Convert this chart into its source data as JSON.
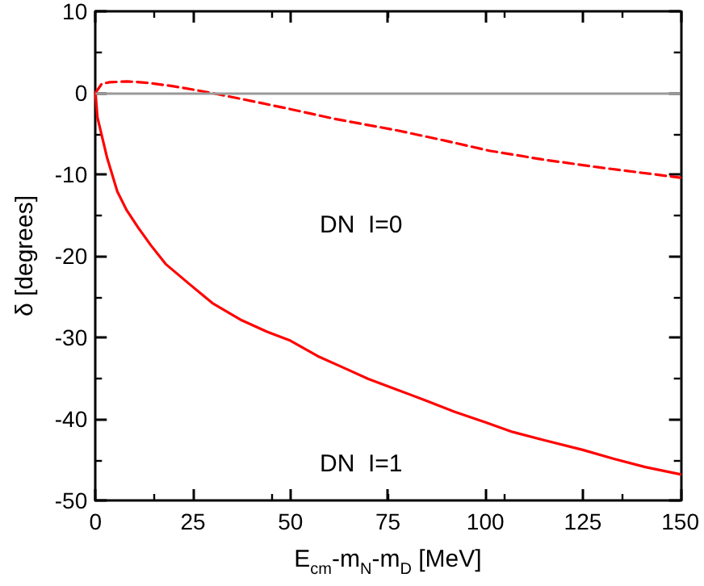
{
  "chart_data": {
    "type": "line",
    "xlabel": "E$_{cm}$-m$_{N}$-m$_{D}$ [MeV]",
    "ylabel": "δ [degrees]",
    "xlim": [
      0,
      150
    ],
    "xticks": [
      0,
      25,
      50,
      75,
      100,
      125,
      150
    ],
    "ylim": [
      -50,
      10
    ],
    "yticks": [
      -50,
      -40,
      -30,
      -20,
      -10,
      0,
      10
    ],
    "grid": false,
    "marker": "none",
    "series": [
      {
        "color": "#ff0000",
        "line_style": "solid",
        "x": [
          0,
          0.5,
          1.6,
          3,
          5.6,
          8,
          10.9,
          14.2,
          18,
          24.2,
          30,
          37.5,
          44,
          50,
          57,
          64,
          70,
          77.3,
          85,
          92,
          99.9,
          107,
          115,
          125,
          133,
          141,
          150
        ],
        "values": [
          0,
          -3,
          -5.2,
          -8,
          -12.1,
          -14.4,
          -16.5,
          -18.7,
          -21,
          -23.5,
          -25.8,
          -27.9,
          -29.3,
          -30.4,
          -32.3,
          -33.8,
          -35.1,
          -36.4,
          -37.8,
          -39.1,
          -40.4,
          -41.6,
          -42.6,
          -43.8,
          -44.9,
          -45.9,
          -46.8
        ]
      },
      {
        "color": "#ff0000",
        "line_style": "dashed",
        "x": [
          0,
          1.6,
          3.6,
          8.2,
          14,
          20,
          25,
          29.5,
          40,
          50,
          61.4,
          77.3,
          90,
          101,
          115,
          130,
          140,
          150
        ],
        "values": [
          0,
          1.1,
          1.3,
          1.4,
          1.2,
          0.8,
          0.4,
          0,
          -1,
          -2,
          -3.2,
          -4.6,
          -5.9,
          -7.1,
          -8.2,
          -9.2,
          -9.8,
          -10.4
        ]
      }
    ],
    "ref_lines": [
      {
        "axis": "y",
        "value": 0,
        "color": "#999999",
        "line_style": "solid"
      }
    ],
    "annotations": [
      "DN  I=0",
      "DN  I=1"
    ]
  }
}
